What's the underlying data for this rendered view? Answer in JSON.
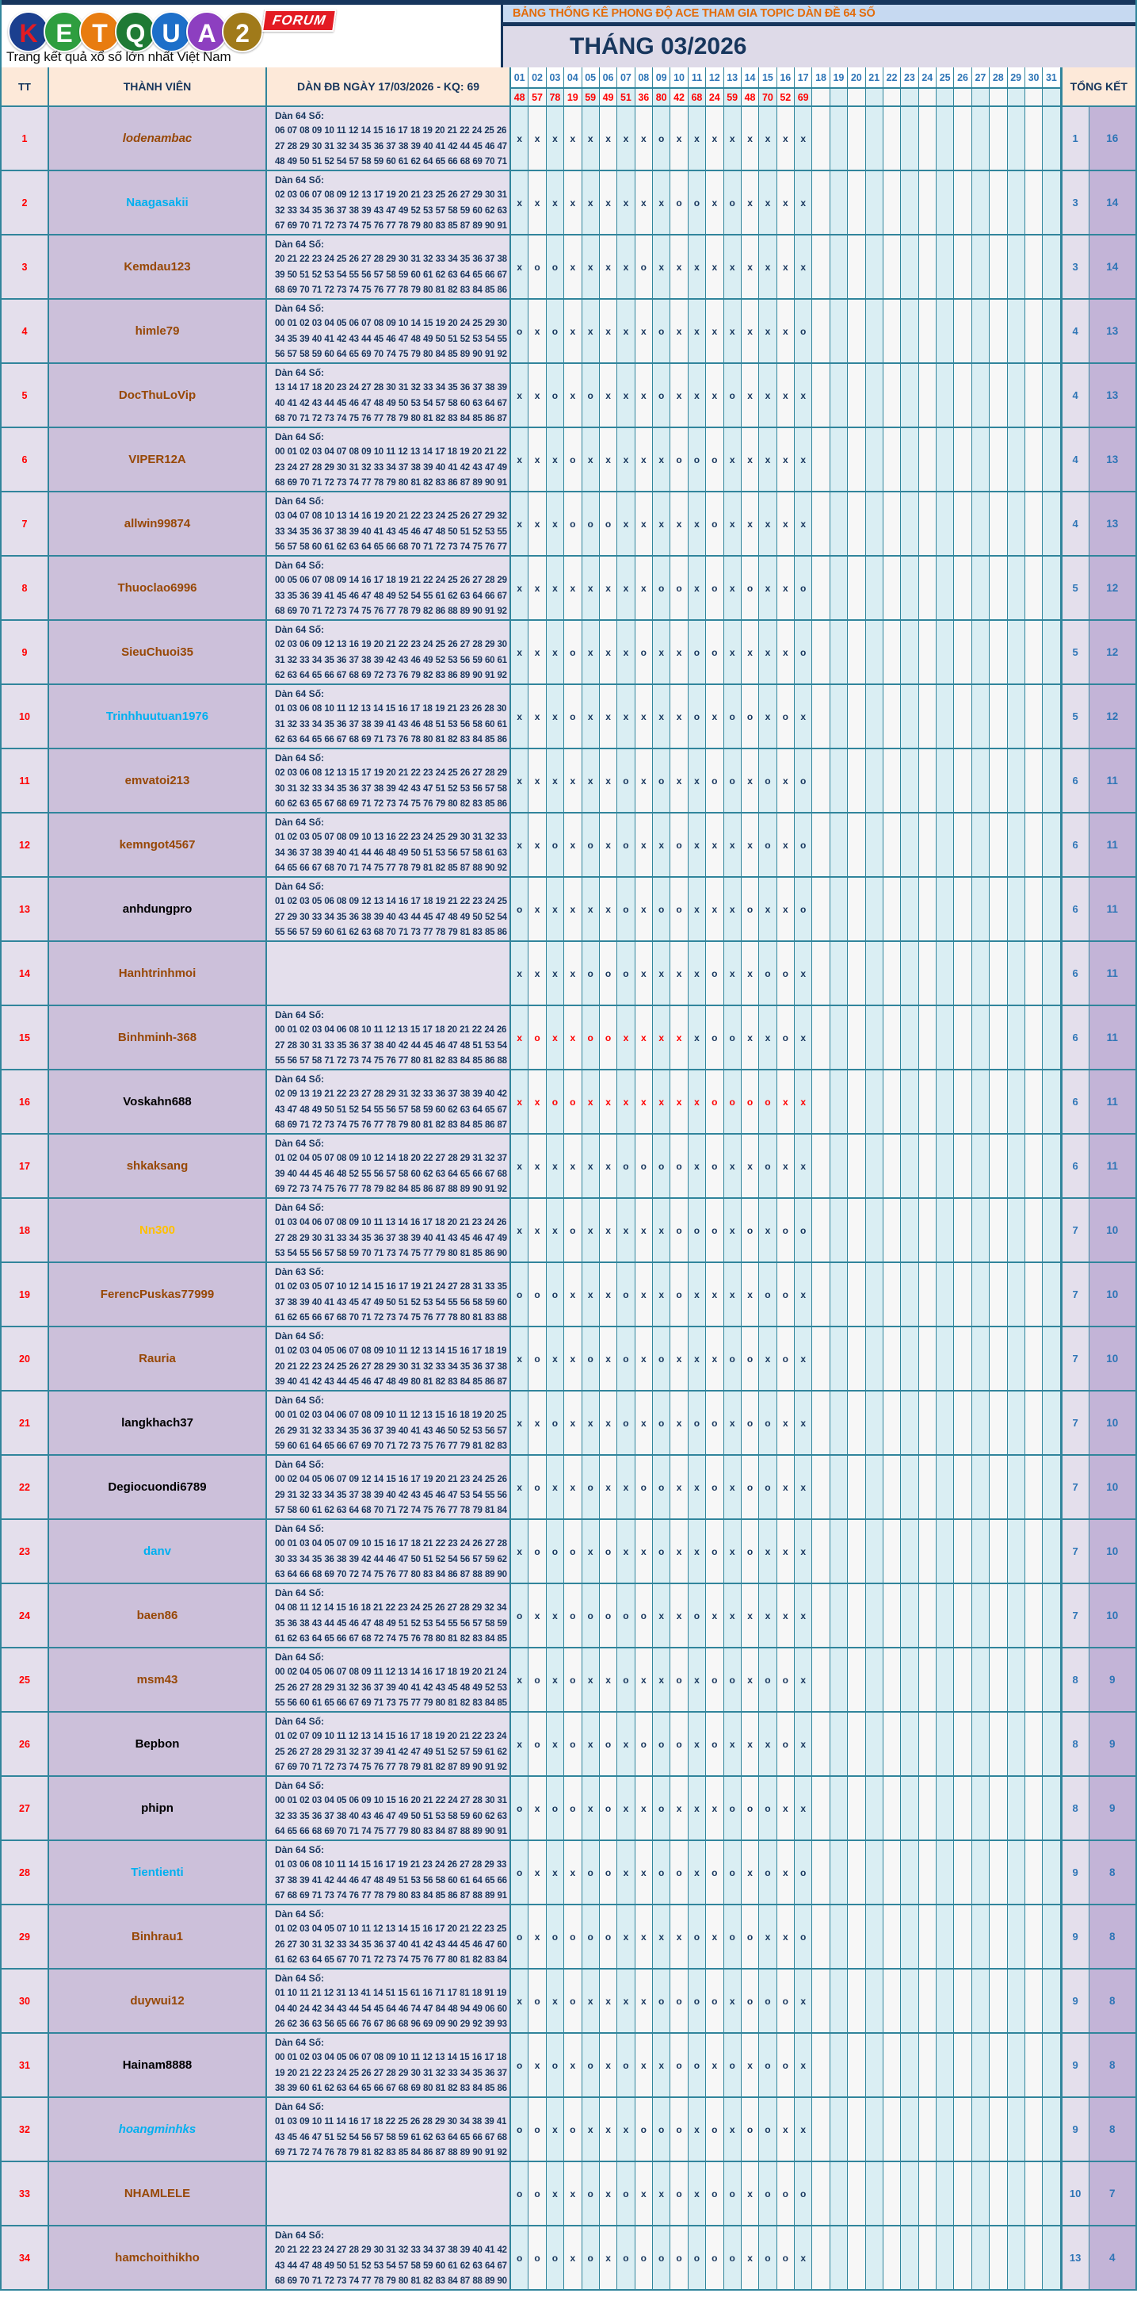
{
  "logo": {
    "letters": [
      {
        "ch": "K",
        "bg": "#1b3f8f",
        "fg": "#e31b23"
      },
      {
        "ch": "E",
        "bg": "#2e9e3f",
        "fg": "#ffffff"
      },
      {
        "ch": "T",
        "bg": "#e87c10",
        "fg": "#ffffff"
      },
      {
        "ch": "Q",
        "bg": "#1f7a35",
        "fg": "#ffffff"
      },
      {
        "ch": "U",
        "bg": "#1d6fc9",
        "fg": "#ffffff"
      },
      {
        "ch": "A",
        "bg": "#8d3fc0",
        "fg": "#ffffff"
      },
      {
        "ch": "2",
        "bg": "#a07a1a",
        "fg": "#ffffff"
      }
    ],
    "forum": "FORUM",
    "tagline": "Trang kết quả xổ số lớn nhất Việt Nam"
  },
  "header": {
    "title": "BẢNG THỐNG KÊ PHONG ĐỘ ACE THAM GIA TOPIC DÀN ĐỀ 64 SỐ",
    "month": "THÁNG 03/2026"
  },
  "columns": {
    "tt": "TT",
    "member": "THÀNH VIÊN",
    "dan": "DÀN ĐB NGÀY 17/03/2026 - KQ: 69",
    "days": [
      "01",
      "02",
      "03",
      "04",
      "05",
      "06",
      "07",
      "08",
      "09",
      "10",
      "11",
      "12",
      "13",
      "14",
      "15",
      "16",
      "17",
      "18",
      "19",
      "20",
      "21",
      "22",
      "23",
      "24",
      "25",
      "26",
      "27",
      "28",
      "29",
      "30",
      "31"
    ],
    "total": "TỔNG KẾT"
  },
  "results": [
    "48",
    "57",
    "78",
    "19",
    "59",
    "49",
    "51",
    "36",
    "80",
    "42",
    "68",
    "24",
    "59",
    "48",
    "70",
    "52",
    "69"
  ],
  "name_colors": {
    "brown": "#974806",
    "cyan": "#00b0f0",
    "orange": "#ffc000",
    "black": "#000000"
  },
  "mark_colors": {
    "navy": "#17365d",
    "red": "#ff0000"
  },
  "rows": [
    {
      "tt": "1",
      "name": "lodenambac",
      "style": "brown",
      "italic": true,
      "dan_label": "Dàn 64 Số:",
      "numbers": "06 07 08 09 10 11 12 14 15 16 17 18 19 20 21 22 24 25 26 27 28 29 30 31 32 34 35 36 37 38 39 40 41 42 44 45 46 47 48 49 50 51 52 54 57 58 59 60 61 62 64 65 66 68 69 70 71 72 74 75 79 82 84 94",
      "marks": "xxxxxxxxoxxxxxxxx",
      "red": 0,
      "tot_o": "1",
      "tot_x": "16"
    },
    {
      "tt": "2",
      "name": "Naagasakii",
      "style": "cyan",
      "italic": false,
      "dan_label": "Dàn 64 Số:",
      "numbers": "02 03 06 07 08 09 12 13 17 19 20 21 23 25 26 27 29 30 31 32 33 34 35 36 37 38 39 43 47 49 52 53 57 58 59 60 62 63 67 69 70 71 72 73 74 75 76 77 78 79 80 83 85 87 89 90 91 92 93 94 95 96 97 99",
      "marks": "xxxxxxxxxooxoxxxx",
      "red": 0,
      "tot_o": "3",
      "tot_x": "14"
    },
    {
      "tt": "3",
      "name": "Kemdau123",
      "style": "brown",
      "italic": false,
      "dan_label": "Dàn 64 Số:",
      "numbers": "20 21 22 23 24 25 26 27 28 29 30 31 32 33 34 35 36 37 38 39 50 51 52 53 54 55 56 57 58 59 60 61 62 63 64 65 66 67 68 69 70 71 72 73 74 75 76 77 78 79 80 81 82 83 84 85 86 87 88 89 90 95 91 96",
      "marks": "xooxxxxoxxxxxxxxx",
      "red": 0,
      "tot_o": "3",
      "tot_x": "14"
    },
    {
      "tt": "4",
      "name": "himle79",
      "style": "brown",
      "italic": false,
      "dan_label": "Dàn 64 Số:",
      "numbers": "00 01 02 03 04 05 06 07 08 09 10 14 15 19 20 24 25 29 30 34 35 39 40 41 42 43 44 45 46 47 48 49 50 51 52 53 54 55 56 57 58 59 60 64 65 69 70 74 75 79 80 84 85 89 90 91 92",
      "marks": "oxoxxxxxoxxxxxxxo",
      "red": 0,
      "tot_o": "4",
      "tot_x": "13"
    },
    {
      "tt": "5",
      "name": "DocThuLoVip",
      "style": "brown",
      "italic": false,
      "dan_label": "Dàn 64 Số:",
      "numbers": "13 14 17 18 20 23 24 27 28 30 31 32 33 34 35 36 37 38 39 40 41 42 43 44 45 46 47 48 49 50 53 54 57 58 60 63 64 67 68 70 71 72 73 74 75 76 77 78 79 80 81 82 83 84 85 86 87",
      "marks": "xxoxoxxxoxxxoxxxx",
      "red": 0,
      "tot_o": "4",
      "tot_x": "13"
    },
    {
      "tt": "6",
      "name": "VIPER12A",
      "style": "brown",
      "italic": false,
      "dan_label": "Dàn 64 Số:",
      "numbers": "00 01 02 03 04 07 08 09 10 11 12 13 14 17 18 19 20 21 22 23 24 27 28 29 30 31 32 33 34 37 38 39 40 41 42 43 47 49 68 69 70 71 72 73 74 77 78 79 80 81 82 83 86 87 89 90 91",
      "marks": "xxxoxxxxxoooxxxxx",
      "red": 0,
      "tot_o": "4",
      "tot_x": "13"
    },
    {
      "tt": "7",
      "name": "allwin99874",
      "style": "brown",
      "italic": false,
      "dan_label": "Dàn 64 Số:",
      "numbers": "03 04 07 08 10 13 14 16 19 20 21 22 23 24 25 26 27 29 32 33 34 35 36 37 38 39 40 41 43 45 46 47 48 50 51 52 53 55 56 57 58 60 61 62 63 64 65 66 68 70 71 72 73 74 75 76 77",
      "marks": "xxxoooxxxxxoxxxxx",
      "red": 0,
      "tot_o": "4",
      "tot_x": "13"
    },
    {
      "tt": "8",
      "name": "Thuoclao6996",
      "style": "brown",
      "italic": false,
      "dan_label": "Dàn 64 Số:",
      "numbers": "00 05 06 07 08 09 14 16 17 18 19 21 22 24 25 26 27 28 29 33 35 36 39 41 45 46 47 48 49 52 54 55 61 62 63 64 66 67 68 69 70 71 72 73 74 75 76 77 78 79 82 86 88 89 90 91 92",
      "marks": "xxxxxxxxooxoxoxxo",
      "red": 0,
      "tot_o": "5",
      "tot_x": "12"
    },
    {
      "tt": "9",
      "name": "SieuChuoi35",
      "style": "brown",
      "italic": false,
      "dan_label": "Dàn 64 Số:",
      "numbers": "02 03 06 09 12 13 16 19 20 21 22 23 24 25 26 27 28 29 30 31 32 33 34 35 36 37 38 39 42 43 46 49 52 53 56 59 60 61 62 63 64 65 66 67 68 69 72 73 76 79 82 83 86 89 90 91 92",
      "marks": "xxxoxxxoxxooxxxxo",
      "red": 0,
      "tot_o": "5",
      "tot_x": "12"
    },
    {
      "tt": "10",
      "name": "Trinhhuutuan1976",
      "style": "cyan",
      "italic": false,
      "dan_label": "Dàn 64 Số:",
      "numbers": "01 03 06 08 10 11 12 13 14 15 16 17 18 19 21 23 26 28 30 31 32 33 34 35 36 37 38 39 41 43 46 48 51 53 56 58 60 61 62 63 64 65 66 67 68 69 71 73 76 78 80 81 82 83 84 85 86",
      "marks": "xxxoxxxxxxoxooxox",
      "red": 0,
      "tot_o": "5",
      "tot_x": "12"
    },
    {
      "tt": "11",
      "name": "emvatoi213",
      "style": "brown",
      "italic": false,
      "dan_label": "Dàn 64 Số:",
      "numbers": "02 03 06 08 12 13 15 17 19 20 21 22 23 24 25 26 27 28 29 30 31 32 33 34 35 36 37 38 39 42 43 47 51 52 53 56 57 58 60 62 63 65 67 68 69 71 72 73 74 75 76 79 80 82 83 85 86",
      "marks": "xxxxxxoxoxxooxoxo",
      "red": 0,
      "tot_o": "6",
      "tot_x": "11"
    },
    {
      "tt": "12",
      "name": "kemngot4567",
      "style": "brown",
      "italic": false,
      "dan_label": "Dàn 64 Số:",
      "numbers": "01 02 03 05 07 08 09 10 13 16 22 23 24 25 29 30 31 32 33 34 36 37 38 39 40 41 44 46 48 49 50 51 53 56 57 58 61 63 64 65 66 67 68 70 71 74 75 77 78 79 81 82 85 87 88 90 92",
      "marks": "xxoxoxoxxoxxxxoxo",
      "red": 0,
      "tot_o": "6",
      "tot_x": "11"
    },
    {
      "tt": "13",
      "name": "anhdungpro",
      "style": "black",
      "italic": false,
      "dan_label": "Dàn 64 Số:",
      "numbers": "01 02 03 05 06 08 09 12 13 14 16 17 18 19 21 22 23 24 25 27 29 30 33 34 35 36 38 39 40 43 44 45 47 48 49 50 52 54 55 56 57 59 60 61 62 63 68 70 71 73 77 78 79 81 83 85 86",
      "marks": "oxxxxxoxooxxxoxxo",
      "red": 0,
      "tot_o": "6",
      "tot_x": "11"
    },
    {
      "tt": "14",
      "name": "Hanhtrinhmoi",
      "style": "brown",
      "italic": false,
      "dan_label": "",
      "numbers": "",
      "marks": "xxxxoooxxxxoxxoox",
      "red": 0,
      "tot_o": "6",
      "tot_x": "11"
    },
    {
      "tt": "15",
      "name": "Binhminh-368",
      "style": "brown",
      "italic": false,
      "dan_label": "Dàn 64 Số:",
      "numbers": "00 01 02 03 04 06 08 10 11 12 13 15 17 18 20 21 22 24 26 27 28 30 31 33 35 36 37 38 40 42 44 45 46 47 48 51 53 54 55 56 57 58 71 72 73 74 75 76 77 80 81 82 83 84 85 86 88",
      "marks": "xoxxooxxxxxooxxox",
      "red": 10,
      "tot_o": "6",
      "tot_x": "11"
    },
    {
      "tt": "16",
      "name": "Voskahn688",
      "style": "black",
      "italic": false,
      "dan_label": "Dàn 64 Số:",
      "numbers": "02 09 13 19 21 22 23 27 28 29 31 32 33 36 37 38 39 40 42 43 47 48 49 50 51 52 54 55 56 57 58 59 60 62 63 64 65 67 68 69 71 72 73 74 75 76 77 78 79 80 81 82 83 84 85 86 87",
      "marks": "xxooxxxxxxxoooox x",
      "red": 17,
      "tot_o": "6",
      "tot_x": "11"
    },
    {
      "tt": "17",
      "name": "shkaksang",
      "style": "brown",
      "italic": false,
      "dan_label": "Dàn 64 Số:",
      "numbers": "01 02 04 05 07 08 09 10 12 14 18 20 22 27 28 29 31 32 37 39 40 44 45 46 48 52 55 56 57 58 60 62 63 64 65 66 67 68 69 72 73 74 75 76 77 78 79 82 84 85 86 87 88 89 90 91 92",
      "marks": "xxxxxxoooox oxxoxx",
      "red": 0,
      "tot_o": "6",
      "tot_x": "11"
    },
    {
      "tt": "18",
      "name": "Nn300",
      "style": "orange",
      "italic": false,
      "dan_label": "Dàn 64 Số:",
      "numbers": "01 03 04 06 07 08 09 10 11 13 14 16 17 18 20 21 23 24 26 27 28 29 30 31 33 34 35 36 37 38 39 40 41 43 45 46 47 49 53 54 55 56 57 58 59 70 71 73 74 75 77 79 80 81 85 86 90",
      "marks": "xxxoxxxxxoooxoxoo",
      "red": 0,
      "tot_o": "7",
      "tot_x": "10"
    },
    {
      "tt": "19",
      "name": "FerencPuskas77999",
      "style": "brown",
      "italic": false,
      "dan_label": "Dàn 63 Số:",
      "numbers": "01 02 03 05 07 10 12 14 15 16 17 19 21 24 27 28 31 33 35 37 38 39 40 41 43 45 47 49 50 51 52 53 54 55 56 58 59 60 61 62 65 66 67 68 70 71 72 73 74 75 76 77 78 80 81 83 88",
      "marks": "oooxxxoxxoxxxxoox",
      "red": 0,
      "tot_o": "7",
      "tot_x": "10"
    },
    {
      "tt": "20",
      "name": "Rauria",
      "style": "brown",
      "italic": false,
      "dan_label": "Dàn 64 Số:",
      "numbers": "01 02 03 04 05 06 07 08 09 10 11 12 13 14 15 16 17 18 19 20 21 22 23 24 25 26 27 28 29 30 31 32 33 34 35 36 37 38 39 40 41 42 43 44 45 46 47 48 49 80 81 82 83 84 85 86 87",
      "marks": "xoxxoxoxoxxxooxox",
      "red": 0,
      "tot_o": "7",
      "tot_x": "10"
    },
    {
      "tt": "21",
      "name": "langkhach37",
      "style": "black",
      "italic": false,
      "dan_label": "Dàn 64 Số:",
      "numbers": "00 01 02 03 04 06 07 08 09 10 11 12 13 15 16 18 19 20 25 26 29 31 32 33 34 35 36 37 39 40 41 43 46 50 52 53 56 57 59 60 61 64 65 66 67 69 70 71 72 73 75 76 77 79 81 82 83",
      "marks": "xxoxxxoxoxooxooxx",
      "red": 0,
      "tot_o": "7",
      "tot_x": "10"
    },
    {
      "tt": "22",
      "name": "Degiocuondi6789",
      "style": "black",
      "italic": false,
      "dan_label": "Dàn 64 Số:",
      "numbers": "00 02 04 05 06 07 09 12 14 15 16 17 19 20 21 23 24 25 26 29 31 32 33 34 35 37 38 39 40 42 43 45 46 47 53 54 55 56 57 58 60 61 62 63 64 68 70 71 72 74 75 76 77 78 79 81 84",
      "marks": "xoxxoxxooxxoxooxx",
      "red": 0,
      "tot_o": "7",
      "tot_x": "10"
    },
    {
      "tt": "23",
      "name": "danv",
      "style": "cyan",
      "italic": false,
      "dan_label": "Dàn 64 Số:",
      "numbers": "00 01 03 04 05 07 09 10 15 16 17 18 21 22 23 24 26 27 28 30 33 34 35 36 38 39 42 44 46 47 50 51 52 54 56 57 59 62 63 64 66 68 69 70 72 74 75 76 77 80 83 84 86 87 88 89 90",
      "marks": "xoooxoxxoxxoxoxxx",
      "red": 0,
      "tot_o": "7",
      "tot_x": "10"
    },
    {
      "tt": "24",
      "name": "baen86",
      "style": "brown",
      "italic": false,
      "dan_label": "Dàn 64 Số:",
      "numbers": "04 08 11 12 14 15 16 18 21 22 23 24 25 26 27 28 29 32 34 35 36 38 43 44 45 46 47 48 49 51 52 53 54 55 56 57 58 59 61 62 63 64 65 66 67 68 72 74 75 76 78 80 81 82 83 84 85",
      "marks": "oxxoooooxxoxxxxxx",
      "red": 0,
      "tot_o": "7",
      "tot_x": "10"
    },
    {
      "tt": "25",
      "name": "msm43",
      "style": "brown",
      "italic": false,
      "dan_label": "Dàn 64 Số:",
      "numbers": "00 02 04 05 06 07 08 09 11 12 13 14 16 17 18 19 20 21 24 25 26 27 28 29 31 32 36 37 39 40 41 42 43 45 48 49 52 53 55 56 60 61 65 66 67 69 71 73 75 77 79 80 81 82 83 84 85",
      "marks": "xoxoxxoxxoxooxoox",
      "red": 0,
      "tot_o": "8",
      "tot_x": "9"
    },
    {
      "tt": "26",
      "name": "Bepbon",
      "style": "black",
      "italic": false,
      "dan_label": "Dàn 64 Số:",
      "numbers": "01 02 07 09 10 11 12 13 14 15 16 17 18 19 20 21 22 23 24 25 26 27 28 29 31 32 37 39 41 42 47 49 51 52 57 59 61 62 67 69 70 71 72 73 74 75 76 77 78 79 81 82 87 89 90 91 92",
      "marks": "xoxoxoxoooxoxxxox",
      "red": 0,
      "tot_o": "8",
      "tot_x": "9"
    },
    {
      "tt": "27",
      "name": "phipn",
      "style": "black",
      "italic": false,
      "dan_label": "Dàn 64 Số:",
      "numbers": "00 01 02 03 04 05 06 09 10 15 16 20 21 22 24 27 28 30 31 32 33 35 36 37 38 40 43 46 47 49 50 51 53 58 59 60 62 63 64 65 66 68 69 70 71 74 75 77 79 80 83 84 87 88 89 90 91",
      "marks": "oxooxoxxoxxxoooxx",
      "red": 0,
      "tot_o": "8",
      "tot_x": "9"
    },
    {
      "tt": "28",
      "name": "Tientienti",
      "style": "cyan",
      "italic": false,
      "dan_label": "Dàn 64 Số:",
      "numbers": "01 03 06 08 10 11 14 15 16 17 19 21 23 24 26 27 28 29 33 37 38 39 41 42 44 46 47 48 49 51 53 56 58 60 61 64 65 66 67 68 69 71 73 74 76 77 78 79 80 83 84 85 86 87 88 89 91",
      "marks": "oxxxooxxooxooxoxo",
      "red": 0,
      "tot_o": "9",
      "tot_x": "8"
    },
    {
      "tt": "29",
      "name": "Binhrau1",
      "style": "brown",
      "italic": false,
      "dan_label": "Dàn 64 Số:",
      "numbers": "01 02 03 04 05 07 10 11 12 13 14 15 16 17 20 21 22 23 25 26 27 30 31 32 33 34 35 36 37 40 41 42 43 44 45 46 47 60 61 62 63 64 65 67 70 71 72 73 74 75 76 77 80 81 82 83 84",
      "marks": "oxooooxxxxoxooxxo",
      "red": 0,
      "tot_o": "9",
      "tot_x": "8"
    },
    {
      "tt": "30",
      "name": "duywui12",
      "style": "brown",
      "italic": false,
      "dan_label": "Dàn 64 Số:",
      "numbers": "01 10 11 21 12 31 13 41 14 51 15 61 16 71 17 81 18 91 19 04 40 24 42 34 43 44 54 45 64 46 74 47 84 48 94 49 06 60 26 62 36 63 56 65 66 76 67 86 68 96 69 09 90 29 92 39 93",
      "marks": "xoxoxxxxooooxooox",
      "red": 0,
      "tot_o": "9",
      "tot_x": "8"
    },
    {
      "tt": "31",
      "name": "Hainam8888",
      "style": "black",
      "italic": false,
      "dan_label": "Dàn 64 Số:",
      "numbers": "00 01 02 03 04 05 06 07 08 09 10 11 12 13 14 15 16 17 18 19 20 21 22 23 24 25 26 27 28 29 30 31 32 33 34 35 36 37 38 39 60 61 62 63 64 65 66 67 68 69 80 81 82 83 84 85 86",
      "marks": "oxoxoxoxxooxoxoox",
      "red": 0,
      "tot_o": "9",
      "tot_x": "8"
    },
    {
      "tt": "32",
      "name": "hoangminhks",
      "style": "cyan",
      "italic": true,
      "dan_label": "Dàn 64 Số:",
      "numbers": "01 03 09 10 11 14 16 17 18 22 25 26 28 29 30 34 38 39 41 43 45 46 47 51 52 54 56 57 58 59 61 62 63 64 65 66 67 68 69 71 72 74 76 78 79 81 82 83 85 84 86 87 88 89 90 91 92",
      "marks": "ooxoxxxoooxoxooxx",
      "red": 0,
      "tot_o": "9",
      "tot_x": "8"
    },
    {
      "tt": "33",
      "name": "NHAMLELE",
      "style": "brown",
      "italic": false,
      "dan_label": "",
      "numbers": "",
      "marks": "ooxxoxoxxoxooxooo",
      "red": 0,
      "tot_o": "10",
      "tot_x": "7"
    },
    {
      "tt": "34",
      "name": "hamchoithikho",
      "style": "brown",
      "italic": false,
      "dan_label": "Dàn 64 Số:",
      "numbers": "20 21 22 23 24 27 28 29 30 31 32 33 34 37 38 39 40 41 42 43 44 47 48 49 50 51 52 53 54 57 58 59 60 61 62 63 64 67 68 69 70 71 72 73 74 77 78 79 80 81 82 83 84 87 88 89 90",
      "marks": "oooxoxooooooox oox",
      "red": 0,
      "tot_o": "13",
      "tot_x": "4"
    }
  ]
}
